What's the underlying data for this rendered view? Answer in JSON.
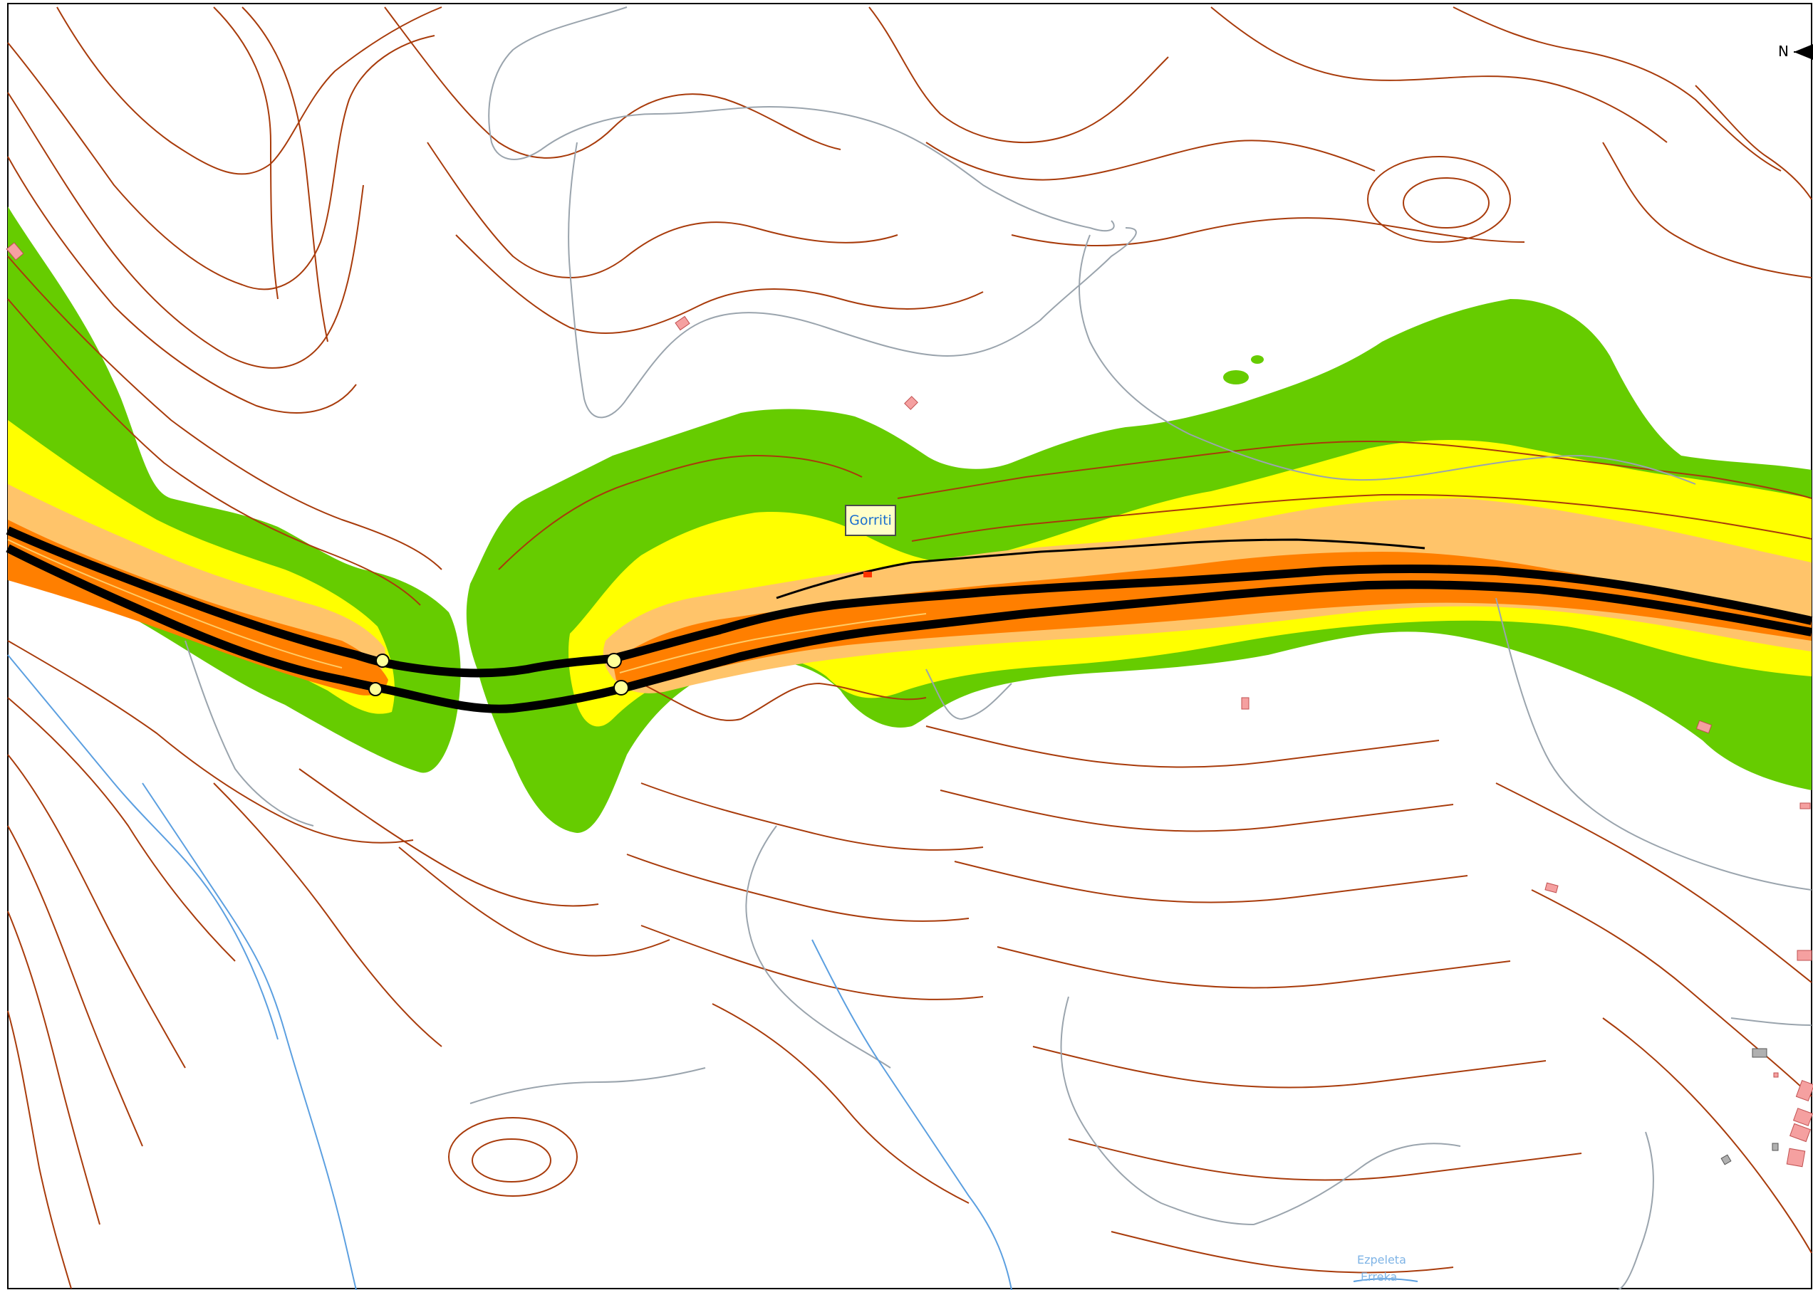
{
  "map": {
    "colors": {
      "contour": "#a83b0b",
      "road_grey": "#9aa4ad",
      "stream": "#5b9fe0",
      "zone_green": "#66cc00",
      "zone_yellow": "#ffff00",
      "zone_light_orange": "#ffc46a",
      "zone_orange": "#ff7f00",
      "highway": "#000000",
      "building": "#f5a0a0",
      "label_bg": "#ffffc8",
      "label_text": "#1a6ecf"
    },
    "place_name": "Gorriti",
    "stream_name_line1": "Ezpeleta",
    "stream_name_line2": "Erreka",
    "north_arrow_letter": "N",
    "icons": {
      "north_arrow": "north-arrow-icon",
      "building": "building-icon",
      "tunnel_portal": "tunnel-portal-icon"
    }
  }
}
